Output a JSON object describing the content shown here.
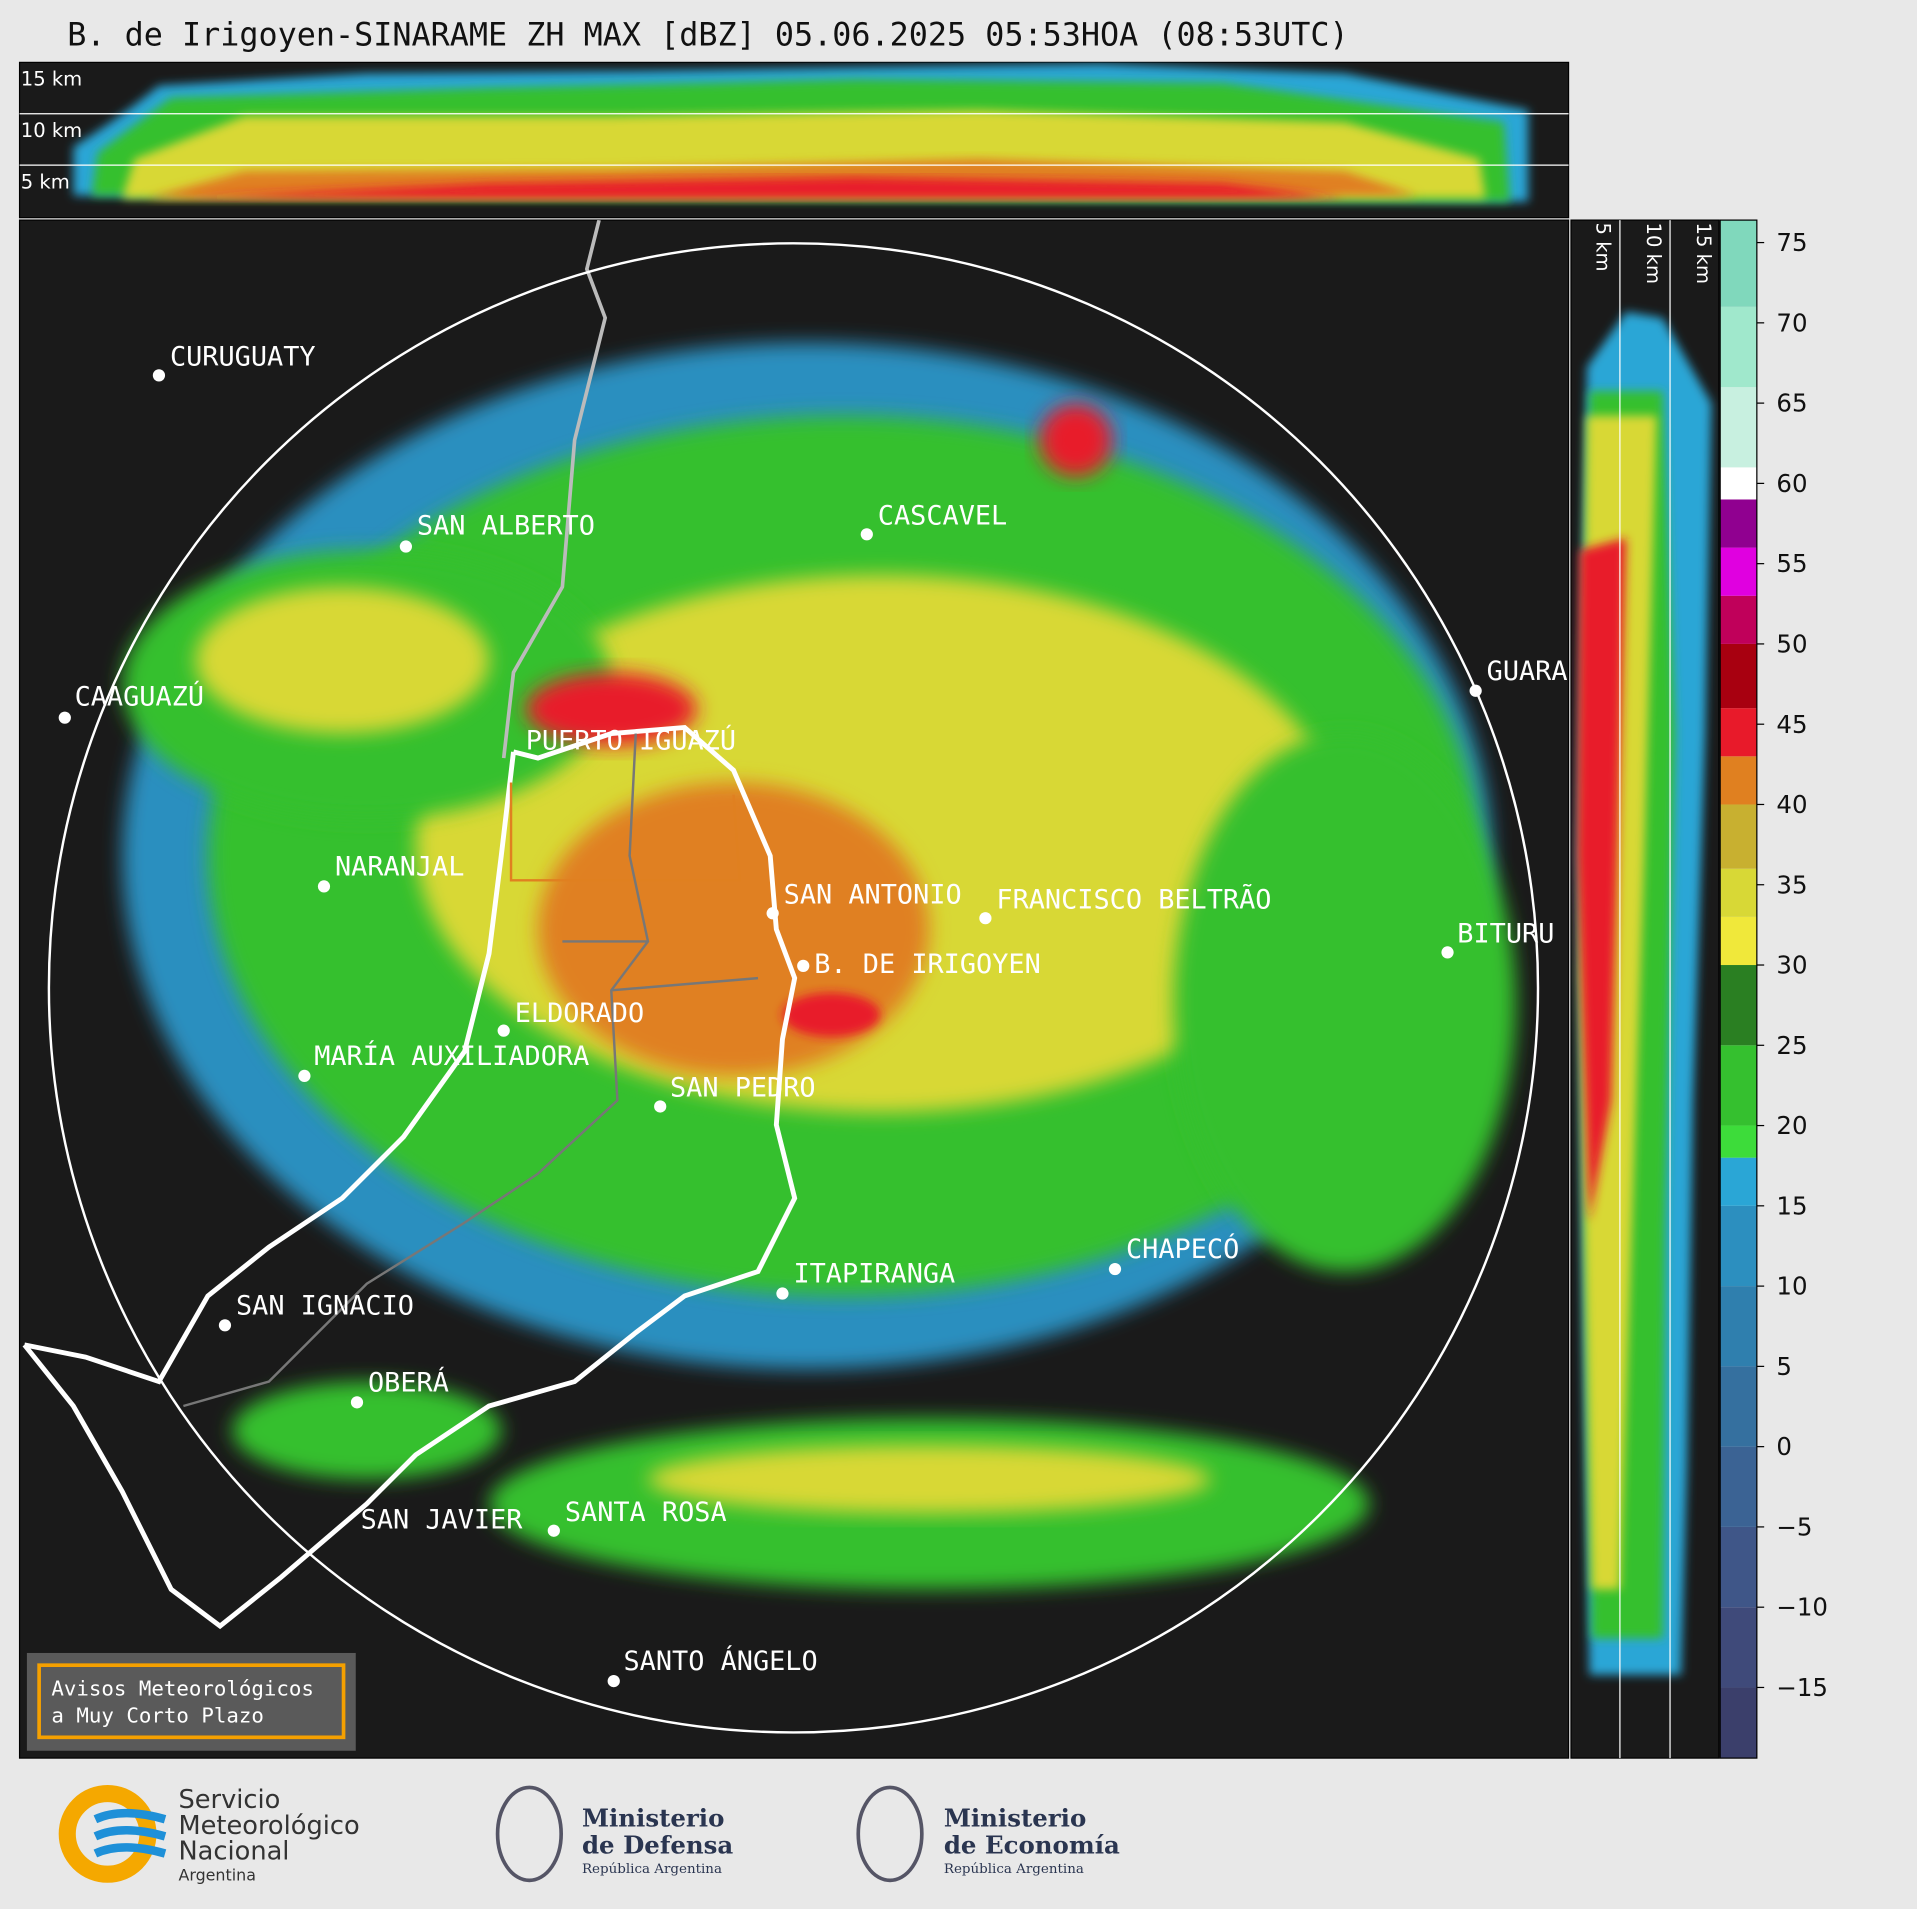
{
  "title": "B. de Irigoyen-SINARAME ZH MAX [dBZ] 05.06.2025 05:53HOA (08:53UTC)",
  "top_panel": {
    "height_labels": [
      "15 km",
      "10 km",
      "5 km"
    ]
  },
  "side_panel": {
    "height_labels": [
      "5 km",
      "10 km",
      "15 km"
    ]
  },
  "cities": [
    "CURUGUATY",
    "SAN ALBERTO",
    "CASCAVEL",
    "GUARA",
    "CAAGUAZÚ",
    "PUERTO IGUAZÚ",
    "NARANJAL",
    "SAN ANTONIO",
    "FRANCISCO BELTRÃO",
    "BITURU",
    "B. DE IRIGOYEN",
    "ELDORADO",
    "MARÍA AUXILIADORA",
    "SAN PEDRO",
    "CHAPECÓ",
    "ITAPIRANGA",
    "SAN IGNACIO",
    "OBERÁ",
    "SAN JAVIER",
    "SANTA ROSA",
    "SANTO ÁNGELO"
  ],
  "notice": [
    "Avisos Meteorológicos",
    "a Muy Corto Plazo"
  ],
  "colorbar": {
    "range": [
      -19.4,
      76.4
    ],
    "ticks": [
      75,
      70,
      65,
      60,
      55,
      50,
      45,
      40,
      35,
      30,
      25,
      20,
      15,
      10,
      5,
      0,
      {
        "value": -5,
        "label": "−5"
      },
      {
        "value": -10,
        "label": "−10"
      },
      {
        "value": -15,
        "label": "−15"
      }
    ],
    "bands": [
      {
        "from": -19.4,
        "to": -15,
        "color": "#3b3f6b"
      },
      {
        "from": -15,
        "to": -10,
        "color": "#3f4a7a"
      },
      {
        "from": -10,
        "to": -5,
        "color": "#3f5688"
      },
      {
        "from": -5,
        "to": 0,
        "color": "#3b6394"
      },
      {
        "from": 0,
        "to": 5,
        "color": "#35709f"
      },
      {
        "from": 5,
        "to": 10,
        "color": "#2f7fae"
      },
      {
        "from": 10,
        "to": 15,
        "color": "#2c8fbf"
      },
      {
        "from": 15,
        "to": 18,
        "color": "#2aa6d6"
      },
      {
        "from": 18,
        "to": 20,
        "color": "#3ddc3a"
      },
      {
        "from": 20,
        "to": 25,
        "color": "#35c02f"
      },
      {
        "from": 25,
        "to": 30,
        "color": "#2a7f22"
      },
      {
        "from": 30,
        "to": 33,
        "color": "#f0e83a"
      },
      {
        "from": 33,
        "to": 36,
        "color": "#d8d836"
      },
      {
        "from": 36,
        "to": 40,
        "color": "#c8b030"
      },
      {
        "from": 40,
        "to": 43,
        "color": "#e08020"
      },
      {
        "from": 43,
        "to": 46,
        "color": "#e81a2a"
      },
      {
        "from": 46,
        "to": 50,
        "color": "#a80010"
      },
      {
        "from": 50,
        "to": 53,
        "color": "#c0005a"
      },
      {
        "from": 53,
        "to": 56,
        "color": "#e000e0"
      },
      {
        "from": 56,
        "to": 59,
        "color": "#900090"
      },
      {
        "from": 59,
        "to": 61,
        "color": "#ffffff"
      },
      {
        "from": 61,
        "to": 66,
        "color": "#c8f0e0"
      },
      {
        "from": 66,
        "to": 71,
        "color": "#a0e8cc"
      },
      {
        "from": 71,
        "to": 76.4,
        "color": "#80d8bc"
      }
    ]
  },
  "footer": {
    "smn": [
      "Servicio",
      "Meteorológico",
      "Nacional",
      "Argentina"
    ],
    "defensa": [
      "Ministerio",
      "de Defensa",
      "República Argentina"
    ],
    "economia": [
      "Ministerio",
      "de Economía",
      "República Argentina"
    ]
  }
}
